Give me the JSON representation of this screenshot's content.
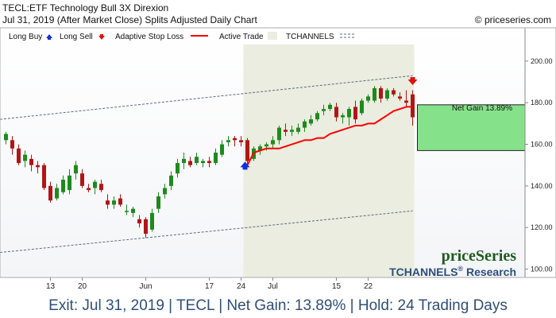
{
  "header": {
    "line1": "TECL:ETF Technology Bull 3X Direxion",
    "line2": "Jul 31, 2019 (After Market Close)  Splits Adjusted Daily Chart",
    "copyright": "© priceseries.com"
  },
  "legend": {
    "long_buy": "Long Buy",
    "long_sell": "Long Sell",
    "adaptive_stop": "Adaptive Stop Loss",
    "active_trade": "Active Trade",
    "tchannels": "TCHANNELS"
  },
  "watermark": {
    "brand": "priceSeries",
    "research_prefix": "TCHANNELS",
    "research_reg": "®",
    "research_suffix": " Research"
  },
  "gain_label": "Net Gain 13.89%",
  "footer_text": "Exit: Jul 31, 2019 | TECL | Net Gain: 13.89% | Hold: 24 Trading Days",
  "colors": {
    "up_candle": "#1e8a1e",
    "down_candle": "#b01616",
    "stop_line": "#ff0000",
    "active_bg": "#eaeddf",
    "gain_box": "#86e28a",
    "buy_arrow": "#1030e0",
    "sell_arrow": "#e01010",
    "channel": "#5a6a80",
    "watermark_green": "#1f5a1f",
    "watermark_blue": "#2c4f7a"
  },
  "chart_data": {
    "type": "candlestick",
    "y_ticks": [
      100,
      120,
      140,
      160,
      180,
      200
    ],
    "y_tick_labels": [
      "100.00",
      "120.00",
      "140.00",
      "160.00",
      "180.00",
      "200.00"
    ],
    "ylim": [
      96,
      216
    ],
    "x_tick_labels": [
      {
        "label": "13",
        "bar": 7
      },
      {
        "label": "20",
        "bar": 12
      },
      {
        "label": "Jun",
        "bar": 22
      },
      {
        "label": "17",
        "bar": 32
      },
      {
        "label": "24",
        "bar": 37
      },
      {
        "label": "Jul",
        "bar": 42
      },
      {
        "label": "15",
        "bar": 52
      },
      {
        "label": "22",
        "bar": 57
      }
    ],
    "bars": [
      {
        "o": 162,
        "h": 166,
        "l": 160,
        "c": 165
      },
      {
        "o": 162,
        "h": 164,
        "l": 155,
        "c": 158
      },
      {
        "o": 158,
        "h": 160,
        "l": 150,
        "c": 151
      },
      {
        "o": 152,
        "h": 157,
        "l": 149,
        "c": 155
      },
      {
        "o": 153,
        "h": 155,
        "l": 147,
        "c": 150
      },
      {
        "o": 150,
        "h": 152,
        "l": 146,
        "c": 149
      },
      {
        "o": 150,
        "h": 151,
        "l": 138,
        "c": 139
      },
      {
        "o": 140,
        "h": 142,
        "l": 132,
        "c": 133
      },
      {
        "o": 134,
        "h": 141,
        "l": 133,
        "c": 139
      },
      {
        "o": 137,
        "h": 145,
        "l": 136,
        "c": 143
      },
      {
        "o": 138,
        "h": 148,
        "l": 136,
        "c": 145
      },
      {
        "o": 146,
        "h": 152,
        "l": 143,
        "c": 150
      },
      {
        "o": 146,
        "h": 148,
        "l": 139,
        "c": 140
      },
      {
        "o": 139,
        "h": 141,
        "l": 137,
        "c": 138
      },
      {
        "o": 139,
        "h": 143,
        "l": 136,
        "c": 142
      },
      {
        "o": 141,
        "h": 143,
        "l": 137,
        "c": 138
      },
      {
        "o": 133,
        "h": 136,
        "l": 129,
        "c": 131
      },
      {
        "o": 131,
        "h": 135,
        "l": 129,
        "c": 133
      },
      {
        "o": 134,
        "h": 136,
        "l": 130,
        "c": 131
      },
      {
        "o": 128,
        "h": 131,
        "l": 126,
        "c": 128
      },
      {
        "o": 127,
        "h": 130,
        "l": 125,
        "c": 129
      },
      {
        "o": 124,
        "h": 126,
        "l": 120,
        "c": 122
      },
      {
        "o": 124,
        "h": 125,
        "l": 115,
        "c": 117
      },
      {
        "o": 119,
        "h": 129,
        "l": 118,
        "c": 127
      },
      {
        "o": 129,
        "h": 137,
        "l": 127,
        "c": 135
      },
      {
        "o": 136,
        "h": 141,
        "l": 134,
        "c": 139
      },
      {
        "o": 140,
        "h": 147,
        "l": 138,
        "c": 145
      },
      {
        "o": 146,
        "h": 153,
        "l": 144,
        "c": 151
      },
      {
        "o": 151,
        "h": 156,
        "l": 148,
        "c": 153
      },
      {
        "o": 152,
        "h": 154,
        "l": 149,
        "c": 150
      },
      {
        "o": 151,
        "h": 156,
        "l": 150,
        "c": 154
      },
      {
        "o": 151,
        "h": 153,
        "l": 149,
        "c": 152
      },
      {
        "o": 152,
        "h": 154,
        "l": 149,
        "c": 151
      },
      {
        "o": 151,
        "h": 158,
        "l": 150,
        "c": 156
      },
      {
        "o": 155,
        "h": 162,
        "l": 154,
        "c": 160
      },
      {
        "o": 161,
        "h": 164,
        "l": 159,
        "c": 162
      },
      {
        "o": 163,
        "h": 164,
        "l": 159,
        "c": 162
      },
      {
        "o": 162,
        "h": 164,
        "l": 159,
        "c": 161
      },
      {
        "o": 162,
        "h": 163,
        "l": 150,
        "c": 152
      },
      {
        "o": 153,
        "h": 159,
        "l": 152,
        "c": 158
      },
      {
        "o": 157,
        "h": 160,
        "l": 155,
        "c": 159
      },
      {
        "o": 159,
        "h": 161,
        "l": 157,
        "c": 160
      },
      {
        "o": 160,
        "h": 164,
        "l": 158,
        "c": 162
      },
      {
        "o": 162,
        "h": 169,
        "l": 160,
        "c": 168
      },
      {
        "o": 167,
        "h": 170,
        "l": 164,
        "c": 166
      },
      {
        "o": 166,
        "h": 169,
        "l": 164,
        "c": 167
      },
      {
        "o": 166,
        "h": 170,
        "l": 165,
        "c": 168
      },
      {
        "o": 168,
        "h": 172,
        "l": 166,
        "c": 171
      },
      {
        "o": 170,
        "h": 174,
        "l": 169,
        "c": 172
      },
      {
        "o": 172,
        "h": 176,
        "l": 171,
        "c": 175
      },
      {
        "o": 176,
        "h": 179,
        "l": 174,
        "c": 177
      },
      {
        "o": 177,
        "h": 180,
        "l": 176,
        "c": 179
      },
      {
        "o": 178,
        "h": 180,
        "l": 171,
        "c": 173
      },
      {
        "o": 173,
        "h": 175,
        "l": 170,
        "c": 174
      },
      {
        "o": 173,
        "h": 178,
        "l": 169,
        "c": 177
      },
      {
        "o": 178,
        "h": 181,
        "l": 170,
        "c": 172
      },
      {
        "o": 175,
        "h": 182,
        "l": 174,
        "c": 181
      },
      {
        "o": 181,
        "h": 184,
        "l": 180,
        "c": 183
      },
      {
        "o": 181,
        "h": 188,
        "l": 180,
        "c": 187
      },
      {
        "o": 187,
        "h": 188,
        "l": 180,
        "c": 182
      },
      {
        "o": 182,
        "h": 187,
        "l": 181,
        "c": 186
      },
      {
        "o": 186,
        "h": 187,
        "l": 183,
        "c": 184
      },
      {
        "o": 183,
        "h": 185,
        "l": 181,
        "c": 182
      },
      {
        "o": 181,
        "h": 186,
        "l": 178,
        "c": 180
      },
      {
        "o": 184,
        "h": 186,
        "l": 169,
        "c": 173
      }
    ],
    "stop_line": [
      {
        "bar": 38,
        "v": 150
      },
      {
        "bar": 39,
        "v": 156
      },
      {
        "bar": 40,
        "v": 157
      },
      {
        "bar": 41,
        "v": 158
      },
      {
        "bar": 43,
        "v": 158
      },
      {
        "bar": 44,
        "v": 159
      },
      {
        "bar": 45,
        "v": 160
      },
      {
        "bar": 46,
        "v": 161
      },
      {
        "bar": 47,
        "v": 162
      },
      {
        "bar": 48,
        "v": 162
      },
      {
        "bar": 49,
        "v": 163
      },
      {
        "bar": 50,
        "v": 163
      },
      {
        "bar": 51,
        "v": 165
      },
      {
        "bar": 52,
        "v": 166
      },
      {
        "bar": 53,
        "v": 167
      },
      {
        "bar": 54,
        "v": 168
      },
      {
        "bar": 55,
        "v": 169
      },
      {
        "bar": 56,
        "v": 169
      },
      {
        "bar": 57,
        "v": 170
      },
      {
        "bar": 58,
        "v": 170
      },
      {
        "bar": 59,
        "v": 172
      },
      {
        "bar": 60,
        "v": 174
      },
      {
        "bar": 61,
        "v": 176
      },
      {
        "bar": 62,
        "v": 177
      },
      {
        "bar": 63,
        "v": 178
      },
      {
        "bar": 64,
        "v": 178
      }
    ],
    "channel_upper": [
      {
        "bar": -1,
        "v": 172
      },
      {
        "bar": 64,
        "v": 193
      }
    ],
    "channel_lower": [
      {
        "bar": -1,
        "v": 108
      },
      {
        "bar": 64,
        "v": 128
      }
    ],
    "active_trade": {
      "start_bar": 38,
      "end_bar": 64
    },
    "buy_signal": {
      "bar": 38,
      "price": 149
    },
    "sell_signal": {
      "bar": 64,
      "price": 190
    },
    "gain_box": {
      "from": 157,
      "to": 179
    }
  }
}
